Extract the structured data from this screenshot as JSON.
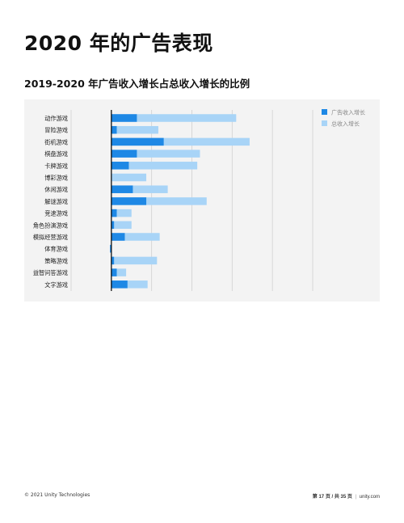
{
  "page": {
    "title": "2020 年的广告表现"
  },
  "footer": {
    "copyright": "© 2021 Unity Technologies",
    "page_prefix": "第 ",
    "page_current": "17",
    "page_mid": " 页 / 共 ",
    "page_total": "35",
    "page_suffix": " 页",
    "separator": "|",
    "site": "unity.com"
  },
  "colors": {
    "ad_growth": "#1e88e5",
    "total_growth": "#a8d4f7",
    "grid": "#d0d0d0",
    "axis": "#000000",
    "panel_bg": "#f3f3f3"
  },
  "chart_data": {
    "type": "bar",
    "orientation": "horizontal",
    "stacked": "overlay",
    "title": "2019-2020 年广告收入增长占总收入增长的比例",
    "categories": [
      "动作游戏",
      "冒险游戏",
      "街机游戏",
      "棋盘游戏",
      "卡牌游戏",
      "博彩游戏",
      "休闲游戏",
      "解谜游戏",
      "竞速游戏",
      "角色扮演游戏",
      "模拟经营游戏",
      "体育游戏",
      "策略游戏",
      "益智问答游戏",
      "文字游戏"
    ],
    "series": [
      {
        "name": "广告收入增长",
        "values": [
          0.19,
          0.04,
          0.39,
          0.19,
          0.13,
          0.0,
          0.16,
          0.26,
          0.04,
          0.02,
          0.1,
          -0.01,
          0.02,
          0.04,
          0.12
        ]
      },
      {
        "name": "总收入增长",
        "values": [
          0.93,
          0.35,
          1.03,
          0.66,
          0.64,
          0.26,
          0.42,
          0.71,
          0.15,
          0.15,
          0.36,
          -0.01,
          0.34,
          0.11,
          0.27
        ]
      }
    ],
    "xlim": [
      -0.3,
      1.5
    ],
    "x_gridlines": [
      -0.3,
      0.0,
      0.3,
      0.6,
      0.9,
      1.2,
      1.5
    ],
    "show_tick_labels": false,
    "legend_position": "top-right",
    "grid": true
  }
}
